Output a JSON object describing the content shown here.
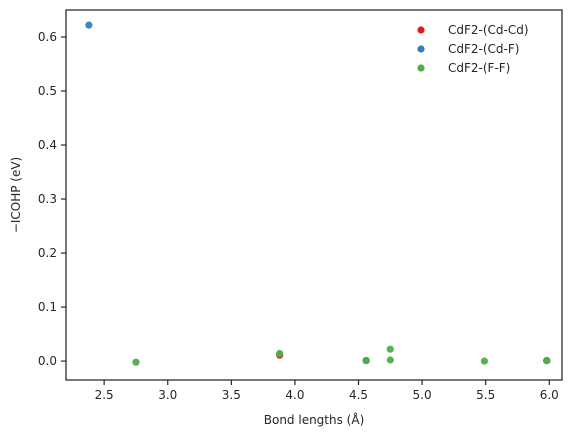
{
  "chart_data": {
    "type": "scatter",
    "xlabel": "Bond lengths (Å)",
    "ylabel": "−ICOHP (eV)",
    "xlim": [
      2.2,
      6.1
    ],
    "ylim": [
      -0.035,
      0.65
    ],
    "x_ticks": [
      2.5,
      3.0,
      3.5,
      4.0,
      4.5,
      5.0,
      5.5,
      6.0
    ],
    "x_tick_labels": [
      "2.5",
      "3.0",
      "3.5",
      "4.0",
      "4.5",
      "5.0",
      "5.5",
      "6.0"
    ],
    "y_ticks": [
      0.0,
      0.1,
      0.2,
      0.3,
      0.4,
      0.5,
      0.6
    ],
    "y_tick_labels": [
      "0.0",
      "0.1",
      "0.2",
      "0.3",
      "0.4",
      "0.5",
      "0.6"
    ],
    "grid": false,
    "legend_position": "top-right",
    "series": [
      {
        "name": "CdF2-(Cd-Cd)",
        "color": "#e41a1c",
        "points": [
          [
            3.88,
            0.011
          ],
          [
            4.56,
            0.001
          ],
          [
            5.98,
            0.001
          ]
        ]
      },
      {
        "name": "CdF2-(Cd-F)",
        "color": "#377eb8",
        "points": [
          [
            2.38,
            0.622
          ],
          [
            4.56,
            0.001
          ],
          [
            5.98,
            0.001
          ]
        ]
      },
      {
        "name": "CdF2-(F-F)",
        "color": "#4daf4a",
        "points": [
          [
            2.75,
            -0.002
          ],
          [
            3.88,
            0.014
          ],
          [
            4.56,
            0.001
          ],
          [
            4.75,
            0.022
          ],
          [
            4.75,
            0.002
          ],
          [
            5.49,
            0.0
          ],
          [
            5.98,
            0.001
          ]
        ]
      }
    ]
  }
}
